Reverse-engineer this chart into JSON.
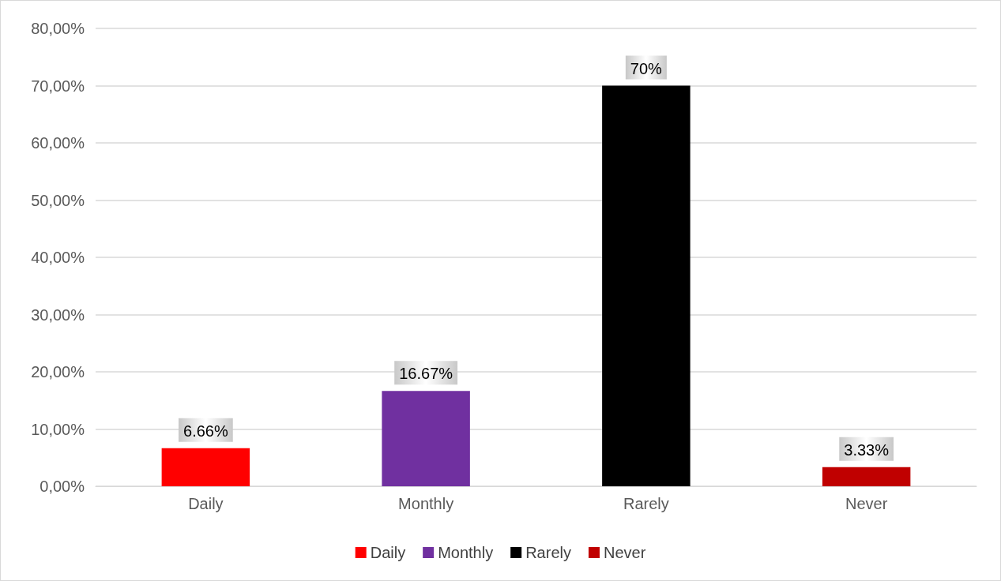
{
  "chart_data": {
    "type": "bar",
    "categories": [
      "Daily",
      "Monthly",
      "Rarely",
      "Never"
    ],
    "series": [
      {
        "name": "Daily",
        "color": "#ff0000",
        "values": [
          6.66,
          null,
          null,
          null
        ],
        "value_labels": [
          "6.66%",
          null,
          null,
          null
        ]
      },
      {
        "name": "Monthly",
        "color": "#7030a0",
        "values": [
          null,
          16.67,
          null,
          null
        ],
        "value_labels": [
          null,
          "16.67%",
          null,
          null
        ]
      },
      {
        "name": "Rarely",
        "color": "#000000",
        "values": [
          null,
          null,
          70,
          null
        ],
        "value_labels": [
          null,
          null,
          "70%",
          null
        ]
      },
      {
        "name": "Never",
        "color": "#c00000",
        "values": [
          null,
          null,
          null,
          3.33
        ],
        "value_labels": [
          null,
          null,
          null,
          "3.33%"
        ]
      }
    ],
    "ylim": [
      0,
      80
    ],
    "yticks": [
      {
        "value": 0,
        "label": "0,00%"
      },
      {
        "value": 10,
        "label": "10,00%"
      },
      {
        "value": 20,
        "label": "20,00%"
      },
      {
        "value": 30,
        "label": "30,00%"
      },
      {
        "value": 40,
        "label": "40,00%"
      },
      {
        "value": 50,
        "label": "50,00%"
      },
      {
        "value": 60,
        "label": "60,00%"
      },
      {
        "value": 70,
        "label": "70,00%"
      },
      {
        "value": 80,
        "label": "80,00%"
      }
    ],
    "grid": "y",
    "legend": "bottom"
  }
}
